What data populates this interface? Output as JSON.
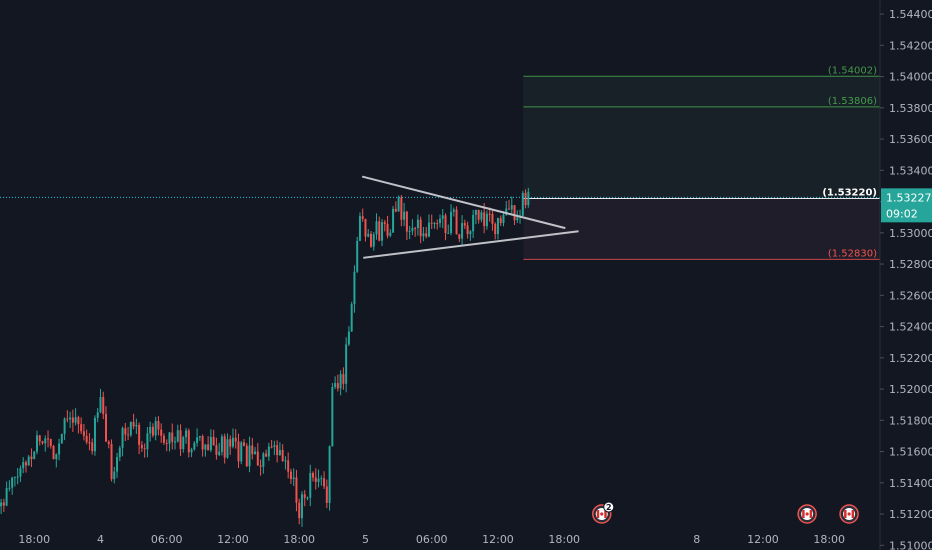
{
  "colors": {
    "background": "#131722",
    "axis_text": "#b2b5be",
    "up": "#26a69a",
    "down": "#ef5350",
    "target": "#4caf50",
    "stop": "#ef5350",
    "entry": "#ffffff",
    "price_line": "#26c6da",
    "triangle": "#c0c2c8",
    "price_label_bg": "#26a69a"
  },
  "chart_data": {
    "type": "candlestick",
    "instrument_hint": "forex",
    "title": "",
    "xlabel": "",
    "ylabel": "",
    "ylim": [
      1.5097,
      1.5449
    ],
    "y_ticks": [
      1.51,
      1.512,
      1.514,
      1.516,
      1.518,
      1.52,
      1.522,
      1.524,
      1.526,
      1.528,
      1.53,
      1.532,
      1.534,
      1.536,
      1.538,
      1.54,
      1.542,
      1.544
    ],
    "y_tick_labels": [
      "1.51000",
      "1.51200",
      "1.51400",
      "1.51600",
      "1.51800",
      "1.52000",
      "1.52200",
      "1.52400",
      "1.52600",
      "1.52800",
      "1.53000",
      "1.53200",
      "1.53400",
      "1.53600",
      "1.53800",
      "1.54000",
      "1.54200",
      "1.54400"
    ],
    "x_ticks": [
      {
        "label": "18:00",
        "hour": 0
      },
      {
        "label": "4",
        "hour": 6
      },
      {
        "label": "06:00",
        "hour": 12
      },
      {
        "label": "12:00",
        "hour": 18
      },
      {
        "label": "18:00",
        "hour": 24
      },
      {
        "label": "5",
        "hour": 30
      },
      {
        "label": "06:00",
        "hour": 36
      },
      {
        "label": "12:00",
        "hour": 42
      },
      {
        "label": "18:00",
        "hour": 48
      },
      {
        "label": "8",
        "hour": 60
      },
      {
        "label": "12:00",
        "hour": 66
      },
      {
        "label": "18:00",
        "hour": 72
      }
    ],
    "x_range_hours": [
      -3.1,
      76.6
    ],
    "price_path": [
      [
        -3.0,
        1.5125
      ],
      [
        -1.5,
        1.5145
      ],
      [
        0.5,
        1.517
      ],
      [
        2.0,
        1.516
      ],
      [
        3.0,
        1.5188
      ],
      [
        4.0,
        1.5175
      ],
      [
        5.0,
        1.516
      ],
      [
        6.0,
        1.5192
      ],
      [
        7.0,
        1.5148
      ],
      [
        8.0,
        1.5168
      ],
      [
        9.0,
        1.5178
      ],
      [
        10.0,
        1.5165
      ],
      [
        11.0,
        1.518
      ],
      [
        12.0,
        1.517
      ],
      [
        14.0,
        1.5165
      ],
      [
        16.0,
        1.5163
      ],
      [
        18.0,
        1.5161
      ],
      [
        20.0,
        1.5155
      ],
      [
        22.0,
        1.5158
      ],
      [
        23.0,
        1.5148
      ],
      [
        24.0,
        1.5125
      ],
      [
        25.0,
        1.514
      ],
      [
        26.5,
        1.5135
      ],
      [
        27.0,
        1.5195
      ],
      [
        28.0,
        1.521
      ],
      [
        28.8,
        1.526
      ],
      [
        29.5,
        1.5315
      ],
      [
        30.2,
        1.5298
      ],
      [
        31.0,
        1.53
      ],
      [
        32.0,
        1.5305
      ],
      [
        33.0,
        1.5315
      ],
      [
        34.0,
        1.53
      ],
      [
        36.0,
        1.5305
      ],
      [
        38.0,
        1.5308
      ],
      [
        39.0,
        1.5298
      ],
      [
        40.0,
        1.531
      ],
      [
        41.5,
        1.5303
      ],
      [
        43.0,
        1.5312
      ],
      [
        44.0,
        1.5316
      ],
      [
        44.8,
        1.5322
      ]
    ],
    "last_price": "1.53227",
    "countdown": "09:02",
    "levels": [
      {
        "name": "target-2",
        "label": "(1.54002)",
        "value": 1.54002,
        "kind": "target"
      },
      {
        "name": "target-1",
        "label": "(1.53806)",
        "value": 1.53806,
        "kind": "target"
      },
      {
        "name": "entry",
        "label": "(1.53220)",
        "value": 1.5322,
        "kind": "entry"
      },
      {
        "name": "stop",
        "label": "(1.52830)",
        "value": 1.5283,
        "kind": "stop"
      }
    ],
    "position_start_hour": 44.3,
    "triangle": {
      "upper": [
        [
          29.7,
          1.5336
        ],
        [
          48.1,
          1.5303
        ]
      ],
      "lower": [
        [
          29.8,
          1.5284
        ],
        [
          49.3,
          1.5301
        ]
      ]
    },
    "events": [
      {
        "name": "event-flag-1",
        "hour": 51.4,
        "badge": "2"
      },
      {
        "name": "event-flag-2",
        "hour": 70.0,
        "badge": ""
      },
      {
        "name": "event-flag-3",
        "hour": 73.8,
        "badge": ""
      }
    ]
  }
}
